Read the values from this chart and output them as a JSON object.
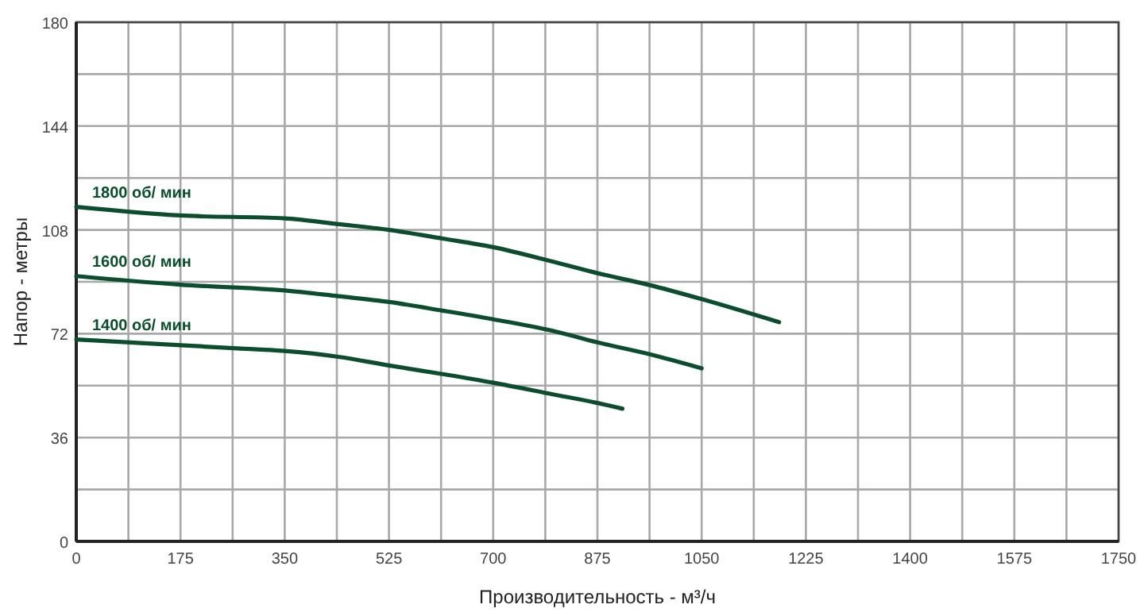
{
  "chart_data": {
    "type": "line",
    "xlabel": "Производительность - м³/ч",
    "ylabel": "Напор - метры",
    "xlim": [
      0,
      1750
    ],
    "ylim": [
      0,
      180
    ],
    "xticks": [
      0,
      {
        "value": 87.5,
        "label": null
      },
      175,
      {
        "value": 262.5,
        "label": null
      },
      350,
      {
        "value": 437.5,
        "label": null
      },
      525,
      {
        "value": 612.5,
        "label": null
      },
      700,
      {
        "value": 787.5,
        "label": null
      },
      875,
      {
        "value": 962.5,
        "label": null
      },
      1050,
      {
        "value": 1137.5,
        "label": null
      },
      1225,
      {
        "value": 1312.5,
        "label": null
      },
      1400,
      {
        "value": 1487.5,
        "label": null
      },
      1575,
      {
        "value": 1662.5,
        "label": null
      },
      1750
    ],
    "yticks": [
      0,
      {
        "value": 18,
        "label": null
      },
      36,
      {
        "value": 54,
        "label": null
      },
      72,
      {
        "value": 90,
        "label": null
      },
      108,
      {
        "value": 126,
        "label": null
      },
      144,
      {
        "value": 162,
        "label": null
      },
      180
    ],
    "grid": true,
    "legend": false,
    "marker": "none",
    "line_style": "solid",
    "series": [
      {
        "name": "1800 об/ мин",
        "color": "#0b4d2c",
        "x": [
          0,
          175,
          350,
          440,
          525,
          615,
          700,
          800,
          875,
          960,
          1050,
          1180
        ],
        "values": [
          116,
          113,
          112,
          110,
          108,
          105,
          102,
          97,
          93,
          89,
          84,
          76
        ]
      },
      {
        "name": "1600 об/ мин",
        "color": "#0b4d2c",
        "x": [
          0,
          175,
          350,
          440,
          525,
          615,
          700,
          800,
          875,
          960,
          1050
        ],
        "values": [
          92,
          89,
          87,
          85,
          83,
          80,
          77,
          73,
          69,
          65,
          60
        ]
      },
      {
        "name": "1400 об/ мин",
        "color": "#0b4d2c",
        "x": [
          0,
          175,
          265,
          350,
          440,
          525,
          615,
          700,
          800,
          875,
          917
        ],
        "values": [
          70,
          68,
          67,
          66,
          64,
          61,
          58,
          55,
          51,
          48,
          46
        ]
      }
    ]
  }
}
